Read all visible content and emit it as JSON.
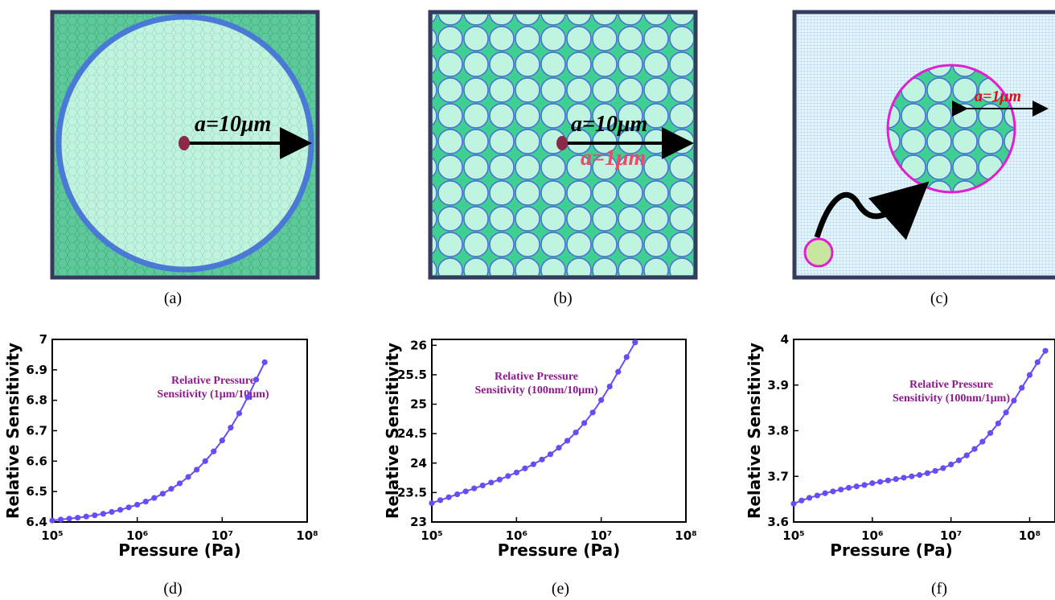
{
  "diagrams": {
    "a": {
      "label": "a=10μm"
    },
    "b": {
      "label_black": "a=10μm",
      "label_red": "a=1μm"
    },
    "c": {
      "label": "a=1μm"
    }
  },
  "captions": [
    "(a)",
    "(b)",
    "(c)",
    "(d)",
    "(e)",
    "(f)"
  ],
  "chart_data": [
    {
      "type": "line",
      "xlabel": "Pressure (Pa)",
      "ylabel": "Relative Sensitivity",
      "annotation": [
        "Relative Pressure",
        "Sensitivity (1μm/10μm)"
      ],
      "xscale": "log",
      "xlim": [
        100000,
        100000000
      ],
      "ylim": [
        6.4,
        7
      ],
      "xticks": [
        {
          "value": 100000,
          "label": "10⁵"
        },
        {
          "value": 1000000,
          "label": "10⁶"
        },
        {
          "value": 10000000,
          "label": "10⁷"
        },
        {
          "value": 100000000,
          "label": "10⁸"
        }
      ],
      "yticks": [
        6.4,
        6.5,
        6.6,
        6.7,
        6.8,
        6.9,
        7
      ],
      "color": "#6a4cf5",
      "x": [
        100000,
        125893,
        158489,
        199526,
        251189,
        316228,
        398107,
        501187,
        630957,
        794328,
        1000000,
        1258925,
        1584893,
        1995262,
        2511886,
        3162278,
        3981072,
        5011872,
        6309573,
        7943282,
        10000000,
        12589254,
        15848932,
        19952623,
        25118864,
        31622777
      ],
      "values": [
        6.405,
        6.408,
        6.411,
        6.414,
        6.418,
        6.422,
        6.427,
        6.433,
        6.44,
        6.448,
        6.457,
        6.467,
        6.479,
        6.493,
        6.509,
        6.527,
        6.548,
        6.572,
        6.6,
        6.632,
        6.668,
        6.71,
        6.757,
        6.81,
        6.868,
        6.925
      ]
    },
    {
      "type": "line",
      "xlabel": "Pressure (Pa)",
      "ylabel": "Relative Sensitivity",
      "annotation": [
        "Relative Pressure",
        "Sensitivity (100nm/10μm)"
      ],
      "xscale": "log",
      "xlim": [
        100000,
        100000000
      ],
      "ylim": [
        23,
        26.1
      ],
      "xticks": [
        {
          "value": 100000,
          "label": "10⁵"
        },
        {
          "value": 1000000,
          "label": "10⁶"
        },
        {
          "value": 10000000,
          "label": "10⁷"
        },
        {
          "value": 100000000,
          "label": "10⁸"
        }
      ],
      "yticks": [
        23,
        23.5,
        24,
        24.5,
        25,
        25.5,
        26
      ],
      "color": "#6a4cf5",
      "x": [
        100000,
        125893,
        158489,
        199526,
        251189,
        316228,
        398107,
        501187,
        630957,
        794328,
        1000000,
        1258925,
        1584893,
        1995262,
        2511886,
        3162278,
        3981072,
        5011872,
        6309573,
        7943282,
        10000000,
        12589254,
        15848932,
        19952623,
        25118864
      ],
      "values": [
        23.32,
        23.37,
        23.42,
        23.47,
        23.52,
        23.57,
        23.62,
        23.67,
        23.72,
        23.78,
        23.84,
        23.91,
        23.98,
        24.06,
        24.15,
        24.26,
        24.38,
        24.52,
        24.68,
        24.86,
        25.07,
        25.3,
        25.55,
        25.8,
        26.05
      ]
    },
    {
      "type": "line",
      "xlabel": "Pressure (Pa)",
      "ylabel": "Relative Sensitivity",
      "annotation": [
        "Relative Pressure",
        "Sensitivity (100nm/1μm)"
      ],
      "xscale": "log",
      "xlim": [
        100000,
        210000000
      ],
      "ylim": [
        3.6,
        4
      ],
      "xticks": [
        {
          "value": 100000,
          "label": "10⁵"
        },
        {
          "value": 1000000,
          "label": "10⁶"
        },
        {
          "value": 10000000,
          "label": "10⁷"
        },
        {
          "value": 100000000,
          "label": "10⁸"
        }
      ],
      "yticks": [
        3.6,
        3.7,
        3.8,
        3.9,
        4
      ],
      "color": "#6a4cf5",
      "x": [
        100000,
        125893,
        158489,
        199526,
        251189,
        316228,
        398107,
        501187,
        630957,
        794328,
        1000000,
        1258925,
        1584893,
        1995262,
        2511886,
        3162278,
        3981072,
        5011872,
        6309573,
        7943282,
        10000000,
        12589254,
        15848932,
        19952623,
        25118864,
        31622777,
        39810717,
        50118723,
        63095734,
        79432823,
        100000000,
        125892541,
        158489319
      ],
      "values": [
        3.64,
        3.647,
        3.653,
        3.658,
        3.663,
        3.667,
        3.671,
        3.675,
        3.678,
        3.681,
        3.685,
        3.688,
        3.691,
        3.694,
        3.697,
        3.7,
        3.703,
        3.707,
        3.712,
        3.718,
        3.726,
        3.735,
        3.746,
        3.76,
        3.776,
        3.795,
        3.816,
        3.84,
        3.866,
        3.894,
        3.922,
        3.95,
        3.975
      ]
    }
  ]
}
